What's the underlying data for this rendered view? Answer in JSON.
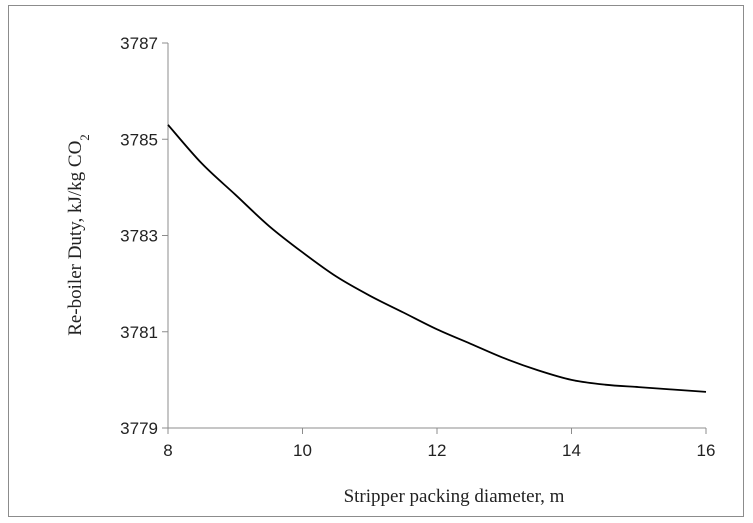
{
  "chart_data": {
    "type": "line",
    "title": "",
    "xlabel": "Stripper packing diameter, m",
    "ylabel": "Re-boiler Duty, kJ/kg CO",
    "ylabel_subscript": "2",
    "xlim": [
      8,
      16
    ],
    "ylim": [
      3779,
      3787
    ],
    "x_ticks": [
      8,
      10,
      12,
      14,
      16
    ],
    "y_ticks": [
      3779,
      3781,
      3783,
      3785,
      3787
    ],
    "grid": false,
    "legend": "none",
    "series": [
      {
        "color": "#000000",
        "x": [
          8,
          8.5,
          9,
          9.5,
          10,
          10.5,
          11,
          11.5,
          12,
          12.5,
          13,
          13.5,
          14,
          14.5,
          15,
          15.5,
          16
        ],
        "y": [
          3785.3,
          3784.5,
          3783.85,
          3783.2,
          3782.65,
          3782.15,
          3781.75,
          3781.4,
          3781.05,
          3780.75,
          3780.45,
          3780.2,
          3780.0,
          3779.9,
          3779.85,
          3779.8,
          3779.75
        ]
      }
    ]
  }
}
